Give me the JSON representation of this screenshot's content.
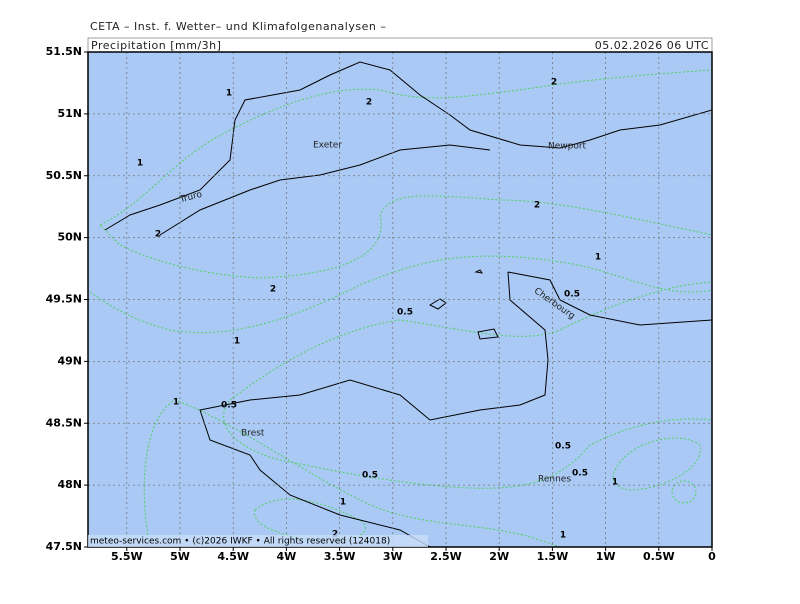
{
  "header": {
    "source": "CETA – Inst. f. Wetter– und Klimafolgenanalysen –",
    "title": "Precipitation [mm/3h]",
    "date": "05.02.2026 06 UTC"
  },
  "footer": "meteo-services.com • (c)2026 IWKF • All rights reserved (124018)",
  "lat_labels": [
    "51.5N",
    "51N",
    "50.5N",
    "50N",
    "49.5N",
    "49N",
    "48.5N",
    "48N",
    "47.5N"
  ],
  "lon_labels": [
    "5.5W",
    "5W",
    "4.5W",
    "4W",
    "3.5W",
    "3W",
    "2.5W",
    "2W",
    "1.5W",
    "1W",
    "0.5W",
    "0"
  ],
  "cities": [
    "Exeter",
    "Newport",
    "Truro",
    "Cherbourg",
    "Brest",
    "Rennes"
  ],
  "contour_labels": [
    "1",
    "2",
    "2",
    "1",
    "2",
    "2",
    "1",
    "2",
    "0.5",
    "0.5",
    "1",
    "1",
    "0.5",
    "0.5",
    "0.5",
    "0.5",
    "1",
    "1",
    "2",
    "1"
  ]
}
